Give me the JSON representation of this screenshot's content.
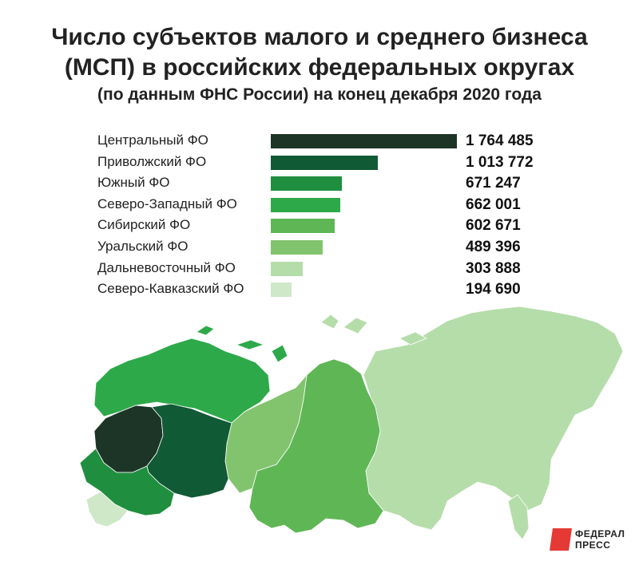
{
  "title_lines": [
    "Число субъектов малого и среднего бизнеса",
    "(МСП) в российских федеральных округах"
  ],
  "subtitle": "(по данным ФНС России) на конец декабря 2020 года",
  "chart_data": {
    "type": "bar",
    "orientation": "horizontal",
    "title": "Число субъектов малого и среднего бизнеса (МСП) в российских федеральных округах",
    "subtitle": "(по данным ФНС России) на конец декабря 2020 года",
    "categories": [
      "Центральный ФО",
      "Приволжский ФО",
      "Южный ФО",
      "Северо-Западный ФО",
      "Сибирский ФО",
      "Уральский ФО",
      "Дальневосточный ФО",
      "Северо-Кавказский ФО"
    ],
    "values": [
      1764485,
      1013772,
      671247,
      662001,
      602671,
      489396,
      303888,
      194690
    ],
    "value_labels": [
      "1 764 485",
      "1 013 772",
      "671 247",
      "662 001",
      "602 671",
      "489 396",
      "303 888",
      "194 690"
    ],
    "colors": [
      "#1c3527",
      "#115a36",
      "#1f8f3f",
      "#2ea94a",
      "#5fb655",
      "#82c46d",
      "#b5ddaa",
      "#cfe8c8"
    ],
    "xlim": [
      0,
      1764485
    ],
    "grid": false,
    "legend": "none"
  },
  "map_colors": {
    "central": "#1c3527",
    "volga": "#115a36",
    "south": "#1f8f3f",
    "northwest": "#2ea94a",
    "siberia": "#5fb655",
    "ural": "#82c46d",
    "fareast": "#b5ddaa",
    "caucasus": "#cfe8c8"
  },
  "logo_text": [
    "ФЕДЕРАЛ",
    "ПРЕСС"
  ]
}
